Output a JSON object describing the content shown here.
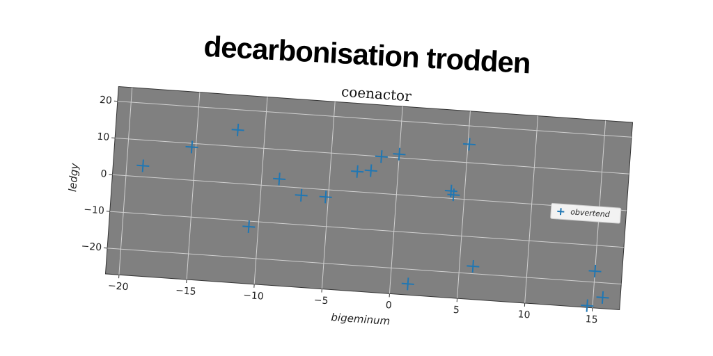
{
  "title": "decarbonisation trodden",
  "chart_data": {
    "type": "scatter",
    "title": "coenactor",
    "x_label": "bigeminum",
    "y_label": "ledgy",
    "series": [
      {
        "name": "obvertend",
        "color": "#1f77b4",
        "x": [
          -18.8,
          -15.3,
          -12,
          -10.7,
          -8.7,
          -7,
          -5.2,
          -3,
          -2,
          -1.3,
          0,
          1.3,
          4,
          4.2,
          5.1,
          6,
          12,
          15,
          15.7,
          14.6
        ],
        "values": [
          3,
          9,
          14.5,
          -11.5,
          2,
          -2,
          -2,
          5.5,
          6,
          10,
          11,
          -24,
          2,
          1,
          15,
          -18,
          -2,
          -17,
          -24,
          -26.5
        ]
      }
    ],
    "xlim": [
      -21,
      17
    ],
    "ylim": [
      -27,
      24
    ],
    "xticks": [
      {
        "value": -20,
        "label": "−20"
      },
      {
        "value": -15,
        "label": "−15"
      },
      {
        "value": -10,
        "label": "−10"
      },
      {
        "value": -5,
        "label": "−5"
      },
      0,
      5,
      10,
      15
    ],
    "yticks": [
      {
        "value": -20,
        "label": "−20"
      },
      {
        "value": -10,
        "label": "−10"
      },
      0,
      10,
      20
    ],
    "grid": true,
    "legend": "center right",
    "background": "#808080"
  }
}
